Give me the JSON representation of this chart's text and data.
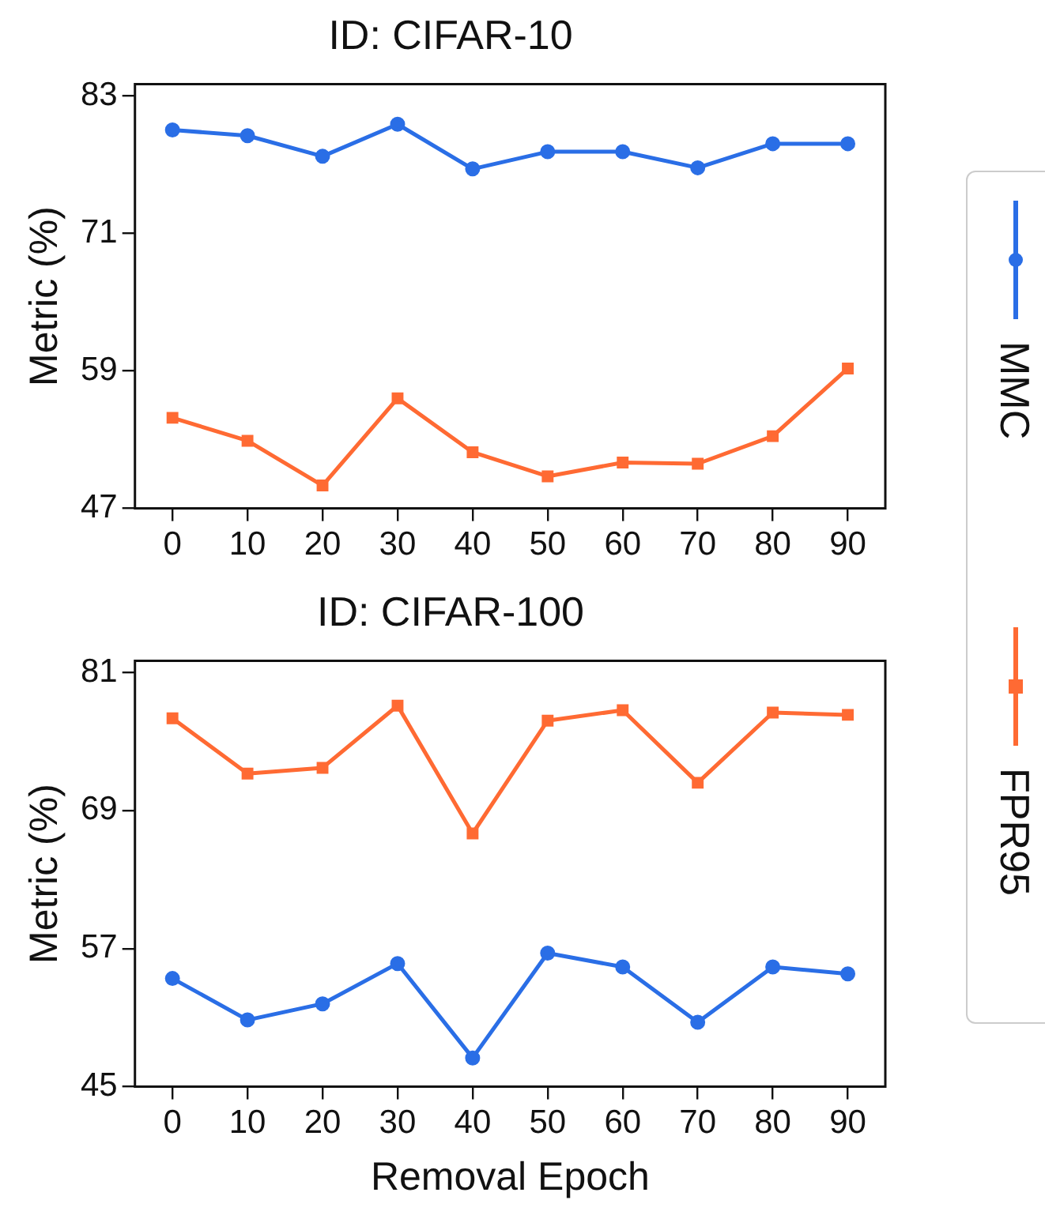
{
  "chart_data": [
    {
      "type": "line",
      "title": "ID: CIFAR-10",
      "ylabel": "Metric (%)",
      "categories": [
        "0",
        "10",
        "20",
        "30",
        "40",
        "50",
        "60",
        "70",
        "80",
        "90"
      ],
      "series": [
        {
          "name": "MMC",
          "color": "#2a6ee6",
          "marker": "circle",
          "values": [
            80.0,
            79.5,
            77.7,
            80.5,
            76.6,
            78.1,
            78.1,
            76.7,
            78.8,
            78.8
          ]
        },
        {
          "name": "FPR95",
          "color": "#ff6a33",
          "marker": "square",
          "values": [
            54.9,
            52.9,
            49.0,
            56.6,
            51.9,
            49.8,
            51.0,
            50.9,
            53.3,
            59.2
          ]
        }
      ],
      "ylim": [
        47,
        84
      ],
      "yticks": [
        47,
        59,
        71,
        83
      ],
      "grid": false,
      "legend": "right",
      "line_style": "solid"
    },
    {
      "type": "line",
      "title": "ID: CIFAR-100",
      "ylabel": "Metric (%)",
      "xlabel": "Removal Epoch",
      "categories": [
        "0",
        "10",
        "20",
        "30",
        "40",
        "50",
        "60",
        "70",
        "80",
        "90"
      ],
      "series": [
        {
          "color": "#2a6ee6",
          "marker": "circle",
          "values": [
            54.4,
            50.8,
            52.2,
            55.7,
            47.5,
            56.6,
            55.4,
            50.6,
            55.4,
            54.8
          ]
        },
        {
          "color": "#ff6a33",
          "marker": "square",
          "values": [
            77.0,
            72.2,
            72.7,
            78.1,
            67.0,
            76.8,
            77.7,
            71.4,
            77.5,
            77.3
          ]
        }
      ],
      "ylim": [
        45,
        82
      ],
      "yticks": [
        45,
        57,
        69,
        81
      ],
      "grid": false,
      "line_style": "solid"
    }
  ]
}
